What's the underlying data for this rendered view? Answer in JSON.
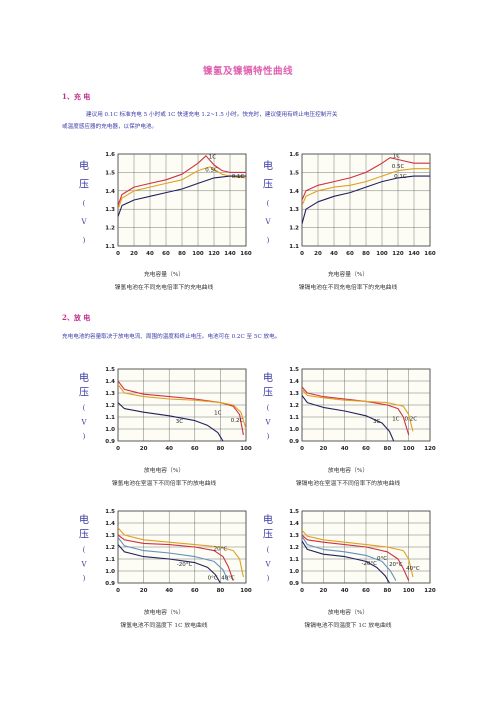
{
  "title": "镍氢及镍镉特性曲线",
  "section1": {
    "heading": "1、充 电",
    "text_line1": "建议用 0.1C 标准充电 5 小时或 1C 快速充电 1.2~1.5 小时。快充时，建议使用有终止电压控制开关",
    "text_line2": "或温度感应器的充电器，以保护电池。"
  },
  "section2": {
    "heading": "2、放 电",
    "text": "充电电池的容量取决于放电电流、周围的温度和终止电压。电池可在 0.2C 至 5C 放电。"
  },
  "y_axis_label": [
    "电",
    "压",
    "(",
    "V",
    ")"
  ],
  "chart_data": [
    {
      "type": "line",
      "ytitle": "电压(V)",
      "xlabel": "充电容量（%）",
      "caption": "镍氢电池在不同充电倍率下的充电曲线",
      "x_ticks": [
        "0",
        "20",
        "40",
        "60",
        "80",
        "100",
        "120",
        "140",
        "160"
      ],
      "y_ticks": [
        "1.1",
        "1.2",
        "1.3",
        "1.4",
        "1.5",
        "1.6"
      ],
      "xlim": [
        0,
        160
      ],
      "ylim": [
        1.1,
        1.6
      ],
      "series": [
        {
          "name": "1C",
          "color": "#d03040",
          "x": [
            0,
            5,
            20,
            40,
            60,
            80,
            100,
            110,
            120,
            130,
            140,
            150,
            160
          ],
          "y": [
            1.32,
            1.38,
            1.42,
            1.44,
            1.46,
            1.49,
            1.55,
            1.59,
            1.54,
            1.51,
            1.5,
            1.5,
            1.5
          ]
        },
        {
          "name": "0.5C",
          "color": "#e0a020",
          "x": [
            0,
            5,
            20,
            40,
            60,
            80,
            100,
            115,
            130,
            140,
            160
          ],
          "y": [
            1.3,
            1.36,
            1.4,
            1.42,
            1.44,
            1.46,
            1.51,
            1.53,
            1.49,
            1.48,
            1.47
          ]
        },
        {
          "name": "0.1C",
          "color": "#202060",
          "x": [
            0,
            5,
            20,
            40,
            60,
            80,
            100,
            120,
            140,
            160
          ],
          "y": [
            1.26,
            1.32,
            1.35,
            1.37,
            1.39,
            1.41,
            1.44,
            1.47,
            1.48,
            1.48
          ]
        }
      ],
      "labels": [
        {
          "text": "1C",
          "x": 118,
          "y": 1.575
        },
        {
          "text": "0.5C",
          "x": 117,
          "y": 1.505
        },
        {
          "text": "0.1C",
          "x": 150,
          "y": 1.47
        }
      ]
    },
    {
      "type": "line",
      "ytitle": "电压(V)",
      "xlabel": "充电容量（%）",
      "caption": "镍镉电池在不同充电倍率下的充电曲线",
      "x_ticks": [
        "0",
        "20",
        "40",
        "60",
        "80",
        "100",
        "120",
        "140",
        "160"
      ],
      "y_ticks": [
        "1.1",
        "1.2",
        "1.3",
        "1.4",
        "1.5",
        "1.6"
      ],
      "xlim": [
        0,
        160
      ],
      "ylim": [
        1.1,
        1.6
      ],
      "series": [
        {
          "name": "1C",
          "color": "#d03040",
          "x": [
            0,
            5,
            20,
            40,
            60,
            80,
            100,
            110,
            120,
            130,
            140,
            160
          ],
          "y": [
            1.35,
            1.4,
            1.43,
            1.45,
            1.47,
            1.5,
            1.55,
            1.58,
            1.57,
            1.56,
            1.55,
            1.55
          ]
        },
        {
          "name": "0.5C",
          "color": "#e0a020",
          "x": [
            0,
            5,
            20,
            40,
            60,
            80,
            100,
            120,
            140,
            160
          ],
          "y": [
            1.32,
            1.37,
            1.4,
            1.42,
            1.43,
            1.45,
            1.48,
            1.51,
            1.52,
            1.52
          ]
        },
        {
          "name": "0.1C",
          "color": "#202060",
          "x": [
            0,
            5,
            20,
            40,
            60,
            80,
            100,
            120,
            140,
            160
          ],
          "y": [
            1.22,
            1.3,
            1.34,
            1.37,
            1.39,
            1.42,
            1.45,
            1.47,
            1.48,
            1.48
          ]
        }
      ],
      "labels": [
        {
          "text": "1C",
          "x": 118,
          "y": 1.58
        },
        {
          "text": "0.5C",
          "x": 120,
          "y": 1.525
        },
        {
          "text": "0.1C",
          "x": 123,
          "y": 1.47
        }
      ]
    },
    {
      "type": "line",
      "ytitle": "电压(V)",
      "xlabel": "放电电容（%）",
      "caption": "镍氢电池在室温下不同倍率下的放电曲线",
      "x_ticks": [
        "0",
        "20",
        "40",
        "60",
        "80",
        "100"
      ],
      "y_ticks": [
        "0.9",
        "1.0",
        "1.1",
        "1.2",
        "1.3",
        "1.4",
        "1.5"
      ],
      "xlim": [
        0,
        100
      ],
      "ylim": [
        0.9,
        1.5
      ],
      "series": [
        {
          "name": "1C",
          "color": "#d03040",
          "x": [
            0,
            5,
            20,
            40,
            60,
            80,
            90,
            95,
            98
          ],
          "y": [
            1.4,
            1.33,
            1.29,
            1.27,
            1.25,
            1.22,
            1.19,
            1.12,
            0.95
          ]
        },
        {
          "name": "0.2C",
          "color": "#e0a020",
          "x": [
            0,
            5,
            20,
            40,
            60,
            80,
            90,
            96,
            100
          ],
          "y": [
            1.37,
            1.3,
            1.27,
            1.25,
            1.24,
            1.22,
            1.2,
            1.14,
            1.0
          ]
        },
        {
          "name": "3C",
          "color": "#202060",
          "x": [
            0,
            5,
            20,
            40,
            60,
            70,
            78,
            82
          ],
          "y": [
            1.22,
            1.17,
            1.14,
            1.11,
            1.07,
            1.03,
            0.97,
            0.9
          ]
        }
      ],
      "labels": [
        {
          "text": "3C",
          "x": 48,
          "y": 1.05
        },
        {
          "text": "1C",
          "x": 78,
          "y": 1.12
        },
        {
          "text": "0.2C",
          "x": 93,
          "y": 1.06
        }
      ]
    },
    {
      "type": "line",
      "ytitle": "电压(V)",
      "xlabel": "放电电容（%）",
      "caption": "镍镉电池在室温下不同倍率下的放电曲线",
      "x_ticks": [
        "0",
        "20",
        "40",
        "60",
        "80",
        "100",
        "120"
      ],
      "y_ticks": [
        "0.9",
        "1.0",
        "1.1",
        "1.2",
        "1.3",
        "1.4",
        "1.5"
      ],
      "xlim": [
        0,
        120
      ],
      "ylim": [
        0.9,
        1.5
      ],
      "series": [
        {
          "name": "1C",
          "color": "#d03040",
          "x": [
            0,
            5,
            20,
            40,
            60,
            80,
            90,
            95,
            100
          ],
          "y": [
            1.35,
            1.3,
            1.27,
            1.25,
            1.23,
            1.2,
            1.17,
            1.1,
            0.95
          ]
        },
        {
          "name": "0.2C",
          "color": "#e0a020",
          "x": [
            0,
            5,
            20,
            40,
            60,
            80,
            95,
            100,
            104
          ],
          "y": [
            1.33,
            1.28,
            1.26,
            1.24,
            1.23,
            1.22,
            1.19,
            1.12,
            0.98
          ]
        },
        {
          "name": "3C",
          "color": "#202060",
          "x": [
            0,
            5,
            20,
            40,
            60,
            75,
            82,
            86
          ],
          "y": [
            1.28,
            1.22,
            1.18,
            1.15,
            1.11,
            1.05,
            0.98,
            0.9
          ]
        }
      ],
      "labels": [
        {
          "text": "3C",
          "x": 70,
          "y": 1.05
        },
        {
          "text": "1C",
          "x": 88,
          "y": 1.07
        },
        {
          "text": "0.2C",
          "x": 102,
          "y": 1.07
        }
      ]
    },
    {
      "type": "line",
      "ytitle": "电压(V)",
      "xlabel": "放电电容（%）",
      "caption": "镍氢电池不同温度下 1C 放电曲线",
      "x_ticks": [
        "0",
        "20",
        "40",
        "60",
        "80",
        "100"
      ],
      "y_ticks": [
        "0.9",
        "1.0",
        "1.1",
        "1.2",
        "1.3",
        "1.4",
        "1.5"
      ],
      "xlim": [
        0,
        100
      ],
      "ylim": [
        0.9,
        1.5
      ],
      "series": [
        {
          "name": "20°C",
          "color": "#e0a020",
          "x": [
            0,
            5,
            20,
            40,
            60,
            80,
            90,
            95,
            98
          ],
          "y": [
            1.36,
            1.3,
            1.26,
            1.24,
            1.22,
            1.2,
            1.17,
            1.1,
            0.95
          ]
        },
        {
          "name": "40°C",
          "color": "#d03040",
          "x": [
            0,
            5,
            20,
            40,
            60,
            75,
            82,
            86,
            90
          ],
          "y": [
            1.3,
            1.26,
            1.23,
            1.22,
            1.2,
            1.17,
            1.12,
            1.04,
            0.92
          ]
        },
        {
          "name": "-20°C",
          "color": "#202060",
          "x": [
            0,
            5,
            20,
            40,
            60,
            70,
            76,
            80
          ],
          "y": [
            1.22,
            1.16,
            1.12,
            1.1,
            1.07,
            1.03,
            0.97,
            0.9
          ]
        },
        {
          "name": "0°C",
          "color": "#6090c0",
          "x": [
            0,
            5,
            20,
            40,
            60,
            75,
            82,
            86
          ],
          "y": [
            1.28,
            1.21,
            1.17,
            1.15,
            1.12,
            1.08,
            1.01,
            0.92
          ]
        }
      ],
      "labels": [
        {
          "text": "20°C",
          "x": 80,
          "y": 1.17
        },
        {
          "text": "-20°C",
          "x": 52,
          "y": 1.04
        },
        {
          "text": "0°C",
          "x": 74,
          "y": 0.93
        },
        {
          "text": "40°C",
          "x": 86,
          "y": 0.93
        }
      ]
    },
    {
      "type": "line",
      "ytitle": "电压(V)",
      "xlabel": "放电电容（%）",
      "caption": "镍镉电池不同温度下 1C 放电曲线",
      "x_ticks": [
        "0",
        "20",
        "40",
        "60",
        "80",
        "100",
        "120"
      ],
      "y_ticks": [
        "0.9",
        "1.0",
        "1.1",
        "1.2",
        "1.3",
        "1.4",
        "1.5"
      ],
      "xlim": [
        0,
        120
      ],
      "ylim": [
        0.9,
        1.5
      ],
      "series": [
        {
          "name": "20°C",
          "color": "#e0a020",
          "x": [
            0,
            5,
            20,
            40,
            60,
            80,
            95,
            100,
            104
          ],
          "y": [
            1.34,
            1.29,
            1.26,
            1.24,
            1.22,
            1.2,
            1.17,
            1.1,
            0.95
          ]
        },
        {
          "name": "40°C",
          "color": "#d03040",
          "x": [
            0,
            5,
            20,
            40,
            60,
            80,
            90,
            95,
            100
          ],
          "y": [
            1.3,
            1.26,
            1.24,
            1.22,
            1.2,
            1.16,
            1.1,
            1.02,
            0.92
          ]
        },
        {
          "name": "-20°C",
          "color": "#202060",
          "x": [
            0,
            5,
            20,
            40,
            60,
            70,
            78,
            82
          ],
          "y": [
            1.25,
            1.18,
            1.14,
            1.12,
            1.08,
            1.03,
            0.96,
            0.9
          ]
        },
        {
          "name": "0°C",
          "color": "#6090c0",
          "x": [
            0,
            5,
            20,
            40,
            60,
            75,
            83,
            88
          ],
          "y": [
            1.29,
            1.22,
            1.18,
            1.16,
            1.13,
            1.08,
            1.0,
            0.92
          ]
        }
      ],
      "labels": [
        {
          "text": "-20°C",
          "x": 63,
          "y": 1.05
        },
        {
          "text": "0°C",
          "x": 75,
          "y": 1.09
        },
        {
          "text": "20°C",
          "x": 88,
          "y": 1.04
        },
        {
          "text": "40°C",
          "x": 104,
          "y": 1.01
        }
      ]
    }
  ]
}
